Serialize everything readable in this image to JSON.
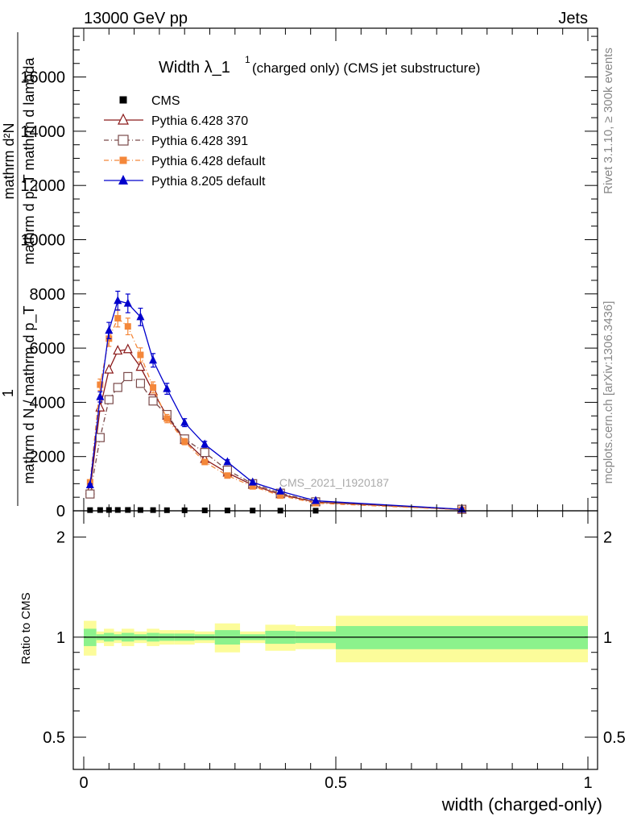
{
  "header": {
    "energy": "13000 GeV pp",
    "process": "Jets"
  },
  "side_labels": {
    "rivet": "Rivet 3.1.10, ≥ 300k events",
    "mcplots": "mcplots.cern.ch [arXiv:1306.3436]"
  },
  "chart_data": {
    "type": "line",
    "title": "Width λ_1^1 (charged only) (CMS jet substructure)",
    "title_main": "Width λ_1",
    "title_sup": "1",
    "title_rest": "(charged only) (CMS jet substructure)",
    "watermark": "CMS_2021_I1920187",
    "xlabel": "width (charged-only)",
    "ylabel_top_num": "1",
    "ylabel_top_frac1_num": "mathrm d²N",
    "ylabel_top_frac1_den": "mathrm d p_T mathrm d lambda",
    "ylabel_top_den": "mathrm d N / mathrm d p_T",
    "ylabel_top_den_prefix": "mathrm d p",
    "ylabel_ratio": "Ratio to CMS",
    "xlim": [
      -0.02,
      1.0
    ],
    "ylim": [
      0,
      17800
    ],
    "ratio_ylim": [
      0.4,
      2.4
    ],
    "x_ticks": [
      {
        "value": 0,
        "label": "0"
      },
      {
        "value": 0.5,
        "label": "0.5"
      },
      {
        "value": 1,
        "label": "1"
      }
    ],
    "y_ticks": [
      {
        "value": 0,
        "label": "0"
      },
      {
        "value": 2000,
        "label": "2000"
      },
      {
        "value": 4000,
        "label": "4000"
      },
      {
        "value": 6000,
        "label": "6000"
      },
      {
        "value": 8000,
        "label": "8000"
      },
      {
        "value": 10000,
        "label": "10000"
      },
      {
        "value": 12000,
        "label": "12000"
      },
      {
        "value": 14000,
        "label": "14000"
      },
      {
        "value": 16000,
        "label": "16000"
      }
    ],
    "ratio_ticks": [
      {
        "value": 0.5,
        "label": "0.5"
      },
      {
        "value": 1,
        "label": "1"
      },
      {
        "value": 2,
        "label": "2"
      }
    ],
    "bins": [
      {
        "lo": 0.0,
        "hi": 0.025,
        "y": 25
      },
      {
        "lo": 0.025,
        "hi": 0.04,
        "y": 28
      },
      {
        "lo": 0.04,
        "hi": 0.06,
        "y": 30
      },
      {
        "lo": 0.06,
        "hi": 0.075,
        "y": 30
      },
      {
        "lo": 0.075,
        "hi": 0.1,
        "y": 30
      },
      {
        "lo": 0.1,
        "hi": 0.125,
        "y": 28
      },
      {
        "lo": 0.125,
        "hi": 0.15,
        "y": 26
      },
      {
        "lo": 0.15,
        "hi": 0.18,
        "y": 22
      },
      {
        "lo": 0.18,
        "hi": 0.22,
        "y": 18
      },
      {
        "lo": 0.22,
        "hi": 0.26,
        "y": 15
      },
      {
        "lo": 0.26,
        "hi": 0.31,
        "y": 12
      },
      {
        "lo": 0.31,
        "hi": 0.36,
        "y": 9
      },
      {
        "lo": 0.36,
        "hi": 0.42,
        "y": 6
      },
      {
        "lo": 0.42,
        "hi": 0.5,
        "y": 4
      },
      {
        "lo": 0.5,
        "hi": 1.0,
        "y": 1
      }
    ],
    "ratio_band_yellow": [
      0.12,
      0.04,
      0.06,
      0.04,
      0.06,
      0.04,
      0.06,
      0.05,
      0.05,
      0.04,
      0.1,
      0.04,
      0.09,
      0.08,
      0.16
    ],
    "ratio_band_green": [
      0.06,
      0.02,
      0.03,
      0.02,
      0.03,
      0.02,
      0.03,
      0.025,
      0.025,
      0.02,
      0.05,
      0.02,
      0.045,
      0.04,
      0.08
    ],
    "series": [
      {
        "name": "CMS",
        "color": "#000000",
        "marker": "square-filled",
        "line": "none",
        "x": [
          0.0125,
          0.0325,
          0.05,
          0.0675,
          0.0875,
          0.1125,
          0.1375,
          0.165,
          0.2,
          0.24,
          0.285,
          0.335,
          0.39,
          0.46,
          0.75
        ],
        "y": [
          25,
          28,
          30,
          30,
          30,
          28,
          26,
          22,
          18,
          15,
          12,
          9,
          6,
          4,
          1
        ]
      },
      {
        "name": "Pythia 6.428 370",
        "color": "#8b1a1a",
        "marker": "triangle-open",
        "line": "solid",
        "x": [
          0.0125,
          0.0325,
          0.05,
          0.0675,
          0.0875,
          0.1125,
          0.1375,
          0.165,
          0.2,
          0.24,
          0.285,
          0.335,
          0.39,
          0.46,
          0.75
        ],
        "y": [
          750,
          3800,
          5200,
          5900,
          5950,
          5300,
          4400,
          3500,
          2600,
          1900,
          1400,
          950,
          600,
          320,
          45
        ]
      },
      {
        "name": "Pythia 6.428 391",
        "color": "#7a4a4a",
        "marker": "square-open",
        "line": "dashdot",
        "x": [
          0.0125,
          0.0325,
          0.05,
          0.0675,
          0.0875,
          0.1125,
          0.1375,
          0.165,
          0.2,
          0.24,
          0.285,
          0.335,
          0.39,
          0.46,
          0.75
        ],
        "y": [
          620,
          2700,
          4100,
          4550,
          4950,
          4700,
          4050,
          3550,
          2650,
          2150,
          1500,
          1000,
          650,
          330,
          55
        ]
      },
      {
        "name": "Pythia 6.428 default",
        "color": "#f4873a",
        "marker": "square-filled",
        "line": "dashdot",
        "x": [
          0.0125,
          0.0325,
          0.05,
          0.0675,
          0.0875,
          0.1125,
          0.1375,
          0.165,
          0.2,
          0.24,
          0.285,
          0.335,
          0.39,
          0.46,
          0.75
        ],
        "y": [
          1050,
          4650,
          6350,
          7100,
          6800,
          5750,
          4550,
          3400,
          2550,
          1800,
          1300,
          900,
          560,
          280,
          40
        ]
      },
      {
        "name": "Pythia 8.205 default",
        "color": "#0000cc",
        "marker": "triangle-filled",
        "line": "solid",
        "x": [
          0.0125,
          0.0325,
          0.05,
          0.0675,
          0.0875,
          0.1125,
          0.1375,
          0.165,
          0.2,
          0.24,
          0.285,
          0.335,
          0.39,
          0.46,
          0.75
        ],
        "y": [
          950,
          4200,
          6650,
          7750,
          7650,
          7150,
          5550,
          4500,
          3250,
          2450,
          1800,
          1050,
          720,
          370,
          55
        ]
      }
    ]
  }
}
